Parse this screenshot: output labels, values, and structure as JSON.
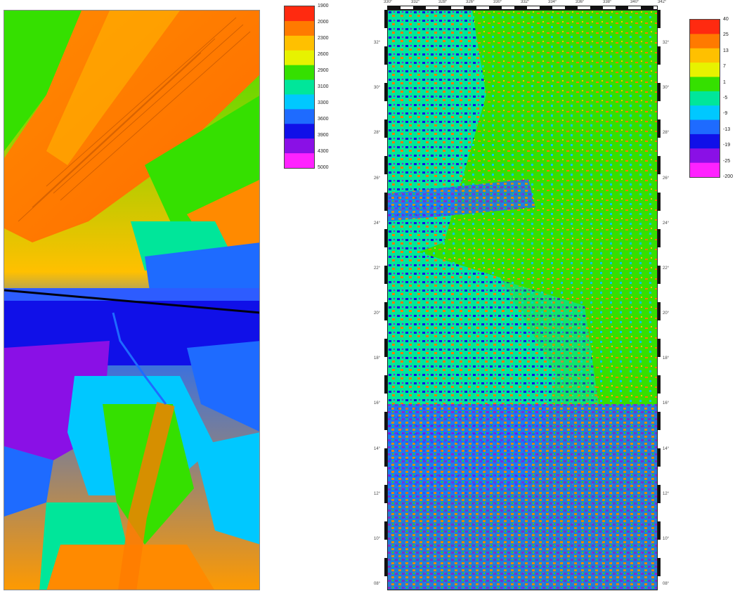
{
  "left_map": {
    "colorbar_labels": [
      "1900",
      "2000",
      "2300",
      "2600",
      "2900",
      "3100",
      "3300",
      "3600",
      "3900",
      "4300",
      "5000"
    ],
    "colorbar_colors": [
      "#ff2a10",
      "#ff7a00",
      "#ffc000",
      "#e7f200",
      "#35e000",
      "#00e69a",
      "#00c8ff",
      "#1e6bff",
      "#1010e8",
      "#8a10e6",
      "#ff22ff"
    ]
  },
  "right_map": {
    "colorbar_labels": [
      "40",
      "25",
      "13",
      "7",
      "1",
      "-5",
      "-9",
      "-13",
      "-19",
      "-25",
      "-200"
    ],
    "colorbar_colors": [
      "#ff2a10",
      "#ff7a00",
      "#ffc000",
      "#e7f200",
      "#35e000",
      "#00e69a",
      "#00c8ff",
      "#1e6bff",
      "#1010e8",
      "#8a10e6",
      "#ff22ff"
    ],
    "top_ticks": [
      "330°",
      "332°",
      "328°",
      "326°",
      "330°",
      "332°",
      "334°",
      "336°",
      "338°",
      "340°",
      "342°"
    ],
    "left_ticks": [
      "32°",
      "30°",
      "28°",
      "26°",
      "24°",
      "22°",
      "20°",
      "18°",
      "16°",
      "14°",
      "12°",
      "10°",
      "08°"
    ],
    "right_ticks": [
      "32°",
      "30°",
      "28°",
      "26°",
      "24°",
      "22°",
      "20°",
      "18°",
      "16°",
      "14°",
      "12°",
      "10°",
      "08°"
    ]
  }
}
